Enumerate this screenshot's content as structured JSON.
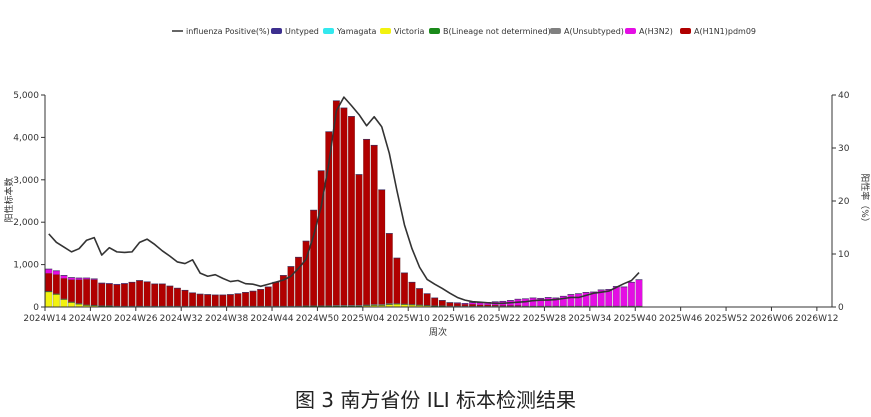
{
  "caption": "图 3   南方省份 ILI 标本检测结果",
  "chart_data": {
    "type": "bar",
    "stacked": true,
    "xlabel": "周次",
    "ylabel": "阳性标本数",
    "y2label": "阳性率（%）",
    "ylim": [
      0,
      5000
    ],
    "y2lim": [
      0,
      40
    ],
    "yticks": [
      "0",
      "1,000",
      "2,000",
      "3,000",
      "4,000",
      "5,000"
    ],
    "y2ticks": [
      "0",
      "10",
      "20",
      "30",
      "40"
    ],
    "xticks": [
      "2024W14",
      "2024W20",
      "2024W26",
      "2024W32",
      "2024W38",
      "2024W44",
      "2024W50",
      "2025W04",
      "2025W10",
      "2025W16",
      "2025W22",
      "2025W28",
      "2025W34",
      "2025W40",
      "2025W46",
      "2025W52",
      "2026W06",
      "2026W12"
    ],
    "legend_position": "top",
    "legend": [
      {
        "name": "influenza Positive(%)",
        "type": "line",
        "color": "#333333"
      },
      {
        "name": "Untyped",
        "color": "#3d2f8f"
      },
      {
        "name": "Yamagata",
        "color": "#33e8ee"
      },
      {
        "name": "Victoria",
        "color": "#f2f20f"
      },
      {
        "name": "B(Lineage not determined)",
        "color": "#1a8a1a"
      },
      {
        "name": "A(Unsubtyped)",
        "color": "#808080"
      },
      {
        "name": "A(H3N2)",
        "color": "#e40ee4"
      },
      {
        "name": "A(H1N1)pdm09",
        "color": "#b00000"
      }
    ],
    "weeks_total": 104,
    "weeks_with_data": 79,
    "series": [
      {
        "name": "A(H1N1)pdm09",
        "color": "#b00000",
        "values": [
          420,
          450,
          480,
          520,
          560,
          600,
          600,
          520,
          510,
          500,
          520,
          560,
          600,
          570,
          520,
          520,
          470,
          420,
          370,
          310,
          280,
          270,
          260,
          260,
          270,
          290,
          320,
          350,
          390,
          450,
          560,
          720,
          930,
          1150,
          1520,
          2250,
          3180,
          4100,
          4820,
          4650,
          4450,
          3080,
          3900,
          3750,
          2700,
          1650,
          1070,
          730,
          520,
          380,
          270,
          180,
          120,
          80,
          60,
          40,
          40,
          25,
          25,
          20,
          10,
          10,
          10,
          0,
          0,
          0,
          0,
          0,
          0,
          0,
          0,
          0,
          0,
          0,
          0,
          0,
          0,
          0,
          0
        ]
      },
      {
        "name": "A(H3N2)",
        "color": "#e40ee4",
        "values": [
          100,
          90,
          70,
          50,
          40,
          30,
          20,
          10,
          10,
          10,
          10,
          0,
          0,
          0,
          0,
          0,
          0,
          0,
          0,
          0,
          0,
          0,
          0,
          0,
          0,
          0,
          0,
          0,
          0,
          0,
          0,
          0,
          0,
          0,
          0,
          0,
          0,
          0,
          0,
          0,
          0,
          0,
          0,
          0,
          0,
          0,
          0,
          0,
          0,
          0,
          0,
          0,
          0,
          0,
          15,
          20,
          40,
          50,
          60,
          80,
          100,
          120,
          150,
          170,
          190,
          180,
          200,
          190,
          230,
          270,
          290,
          320,
          330,
          380,
          390,
          460,
          450,
          560,
          620
        ]
      },
      {
        "name": "A(Unsubtyped)",
        "color": "#808080",
        "values": [
          10,
          10,
          10,
          10,
          10,
          10,
          10,
          10,
          10,
          10,
          10,
          10,
          10,
          10,
          10,
          10,
          10,
          10,
          10,
          10,
          10,
          10,
          10,
          10,
          10,
          10,
          10,
          10,
          10,
          10,
          10,
          10,
          10,
          10,
          10,
          10,
          10,
          10,
          20,
          20,
          20,
          20,
          20,
          20,
          20,
          20,
          10,
          10,
          10,
          10,
          10,
          10,
          10,
          10,
          10,
          10,
          10,
          10,
          10,
          10,
          10,
          10,
          10,
          10,
          10,
          10,
          10,
          10,
          10,
          10,
          10,
          10,
          10,
          10,
          10,
          10,
          10,
          10,
          10
        ]
      },
      {
        "name": "B(Lineage not determined)",
        "color": "#1a8a1a",
        "values": [
          5,
          5,
          5,
          5,
          5,
          5,
          5,
          5,
          5,
          5,
          5,
          5,
          5,
          5,
          5,
          5,
          5,
          5,
          5,
          5,
          5,
          5,
          5,
          5,
          5,
          5,
          5,
          5,
          5,
          5,
          5,
          5,
          5,
          5,
          5,
          5,
          5,
          5,
          5,
          5,
          5,
          5,
          5,
          5,
          5,
          5,
          5,
          5,
          5,
          5,
          5,
          5,
          5,
          5,
          5,
          5,
          5,
          5,
          5,
          5,
          5,
          5,
          5,
          5,
          5,
          5,
          5,
          5,
          5,
          5,
          5,
          5,
          5,
          5,
          5,
          5,
          5,
          5,
          5
        ]
      },
      {
        "name": "Victoria",
        "color": "#f2f20f",
        "values": [
          360,
          300,
          180,
          110,
          70,
          40,
          30,
          20,
          20,
          10,
          10,
          10,
          10,
          10,
          10,
          10,
          10,
          10,
          10,
          10,
          10,
          10,
          10,
          10,
          10,
          10,
          10,
          10,
          10,
          10,
          10,
          10,
          10,
          10,
          20,
          20,
          20,
          20,
          20,
          20,
          20,
          20,
          30,
          40,
          40,
          60,
          70,
          60,
          50,
          40,
          30,
          20,
          20,
          10,
          10,
          10,
          10,
          10,
          10,
          10,
          10,
          10,
          10,
          10,
          10,
          10,
          10,
          10,
          10,
          10,
          10,
          10,
          10,
          10,
          10,
          10,
          10,
          10,
          10
        ]
      },
      {
        "name": "Yamagata",
        "color": "#33e8ee",
        "values": [
          0,
          0,
          0,
          0,
          0,
          0,
          0,
          0,
          0,
          0,
          0,
          0,
          0,
          0,
          0,
          0,
          0,
          0,
          0,
          0,
          0,
          0,
          0,
          0,
          0,
          0,
          0,
          0,
          0,
          0,
          0,
          0,
          0,
          0,
          0,
          0,
          0,
          0,
          0,
          0,
          0,
          0,
          0,
          0,
          0,
          0,
          0,
          0,
          0,
          0,
          0,
          0,
          0,
          0,
          0,
          0,
          0,
          0,
          0,
          0,
          0,
          0,
          0,
          0,
          0,
          0,
          0,
          0,
          0,
          0,
          0,
          0,
          0,
          0,
          0,
          0,
          0,
          0,
          0
        ]
      },
      {
        "name": "Untyped",
        "color": "#3d2f8f",
        "values": [
          5,
          5,
          5,
          5,
          5,
          5,
          5,
          5,
          5,
          5,
          5,
          5,
          5,
          5,
          5,
          5,
          5,
          5,
          5,
          5,
          5,
          5,
          5,
          5,
          5,
          5,
          5,
          5,
          5,
          5,
          5,
          5,
          5,
          5,
          5,
          5,
          5,
          5,
          5,
          5,
          5,
          5,
          5,
          5,
          5,
          5,
          5,
          5,
          5,
          5,
          5,
          5,
          5,
          5,
          5,
          5,
          5,
          5,
          5,
          5,
          5,
          5,
          5,
          5,
          5,
          5,
          5,
          5,
          5,
          5,
          5,
          5,
          5,
          5,
          5,
          5,
          5,
          5,
          5
        ]
      }
    ],
    "line": {
      "name": "influenza Positive(%)",
      "color": "#333333",
      "axis": "right",
      "values": [
        13.8,
        12.2,
        11.3,
        10.4,
        11.0,
        12.6,
        13.1,
        9.8,
        11.2,
        10.4,
        10.3,
        10.4,
        12.2,
        12.8,
        11.8,
        10.6,
        9.6,
        8.5,
        8.2,
        8.9,
        6.4,
        5.8,
        6.1,
        5.4,
        4.8,
        5.0,
        4.4,
        4.3,
        3.9,
        4.3,
        4.7,
        5.1,
        5.8,
        7.3,
        9.0,
        13.5,
        19.0,
        27.0,
        37.0,
        39.6,
        38.0,
        36.3,
        34.2,
        35.9,
        34.0,
        29.0,
        22.0,
        15.5,
        11.0,
        7.5,
        5.2,
        4.3,
        3.5,
        2.6,
        1.8,
        1.3,
        1.0,
        0.9,
        0.8,
        0.7,
        0.7,
        0.8,
        0.9,
        1.0,
        1.2,
        1.3,
        1.3,
        1.4,
        1.6,
        1.8,
        1.8,
        2.2,
        2.6,
        2.8,
        3.0,
        3.7,
        4.4,
        5.0,
        6.5
      ]
    }
  }
}
